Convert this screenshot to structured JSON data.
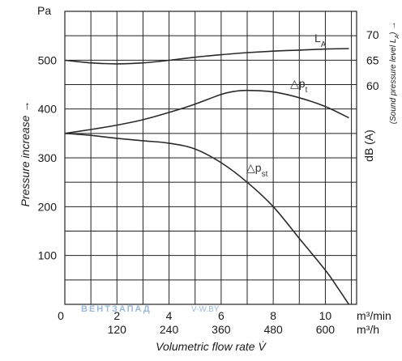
{
  "chart_data": {
    "type": "line",
    "y_left_unit": "Pa",
    "y_left_label": "Pressure increase →",
    "y_left_ticks": [
      100,
      200,
      300,
      400,
      500
    ],
    "ylim": [
      0,
      600
    ],
    "x_ticks_m3min": [
      0,
      2,
      4,
      6,
      8,
      10
    ],
    "x_unit_m3min": "m³/min",
    "x_ticks_m3h": [
      120,
      240,
      360,
      480,
      600
    ],
    "x_unit_m3h": "m³/h",
    "xlabel": "Volumetric flow rate V̇",
    "xlim": [
      0,
      11.2
    ],
    "y_right_ticks": [
      60,
      65,
      70
    ],
    "y_right_unit": "dB (A)",
    "y_right_label": "(Sound pressure level L",
    "y_right_label_sub": "A",
    "y_right_label_end": ") →",
    "grid": true,
    "series": [
      {
        "name": "L",
        "name_sub": "A",
        "axis": "right",
        "x": [
          0,
          1,
          2,
          3,
          4,
          5,
          6,
          7,
          8,
          9,
          10,
          10.9
        ],
        "y": [
          65.0,
          64.5,
          64.3,
          64.5,
          65.0,
          65.6,
          66.1,
          66.5,
          66.8,
          67.0,
          67.2,
          67.3
        ]
      },
      {
        "name": "△p",
        "name_sub": "t",
        "axis": "left",
        "x": [
          0,
          1,
          2,
          3,
          4,
          5,
          6,
          6.5,
          7,
          8,
          9,
          10,
          10.9
        ],
        "y": [
          350,
          358,
          367,
          378,
          393,
          410,
          430,
          436,
          438,
          435,
          423,
          405,
          382
        ]
      },
      {
        "name": "△p",
        "name_sub": "st",
        "axis": "left",
        "x": [
          0,
          1,
          2,
          3,
          4,
          5,
          6,
          7,
          8,
          9,
          10,
          10.5,
          10.9
        ],
        "y": [
          350,
          346,
          340,
          335,
          330,
          318,
          290,
          250,
          200,
          135,
          70,
          32,
          0
        ]
      }
    ]
  },
  "watermark": {
    "brand": "ВЕНТЗАПАД",
    "url": "V-W.BY"
  }
}
